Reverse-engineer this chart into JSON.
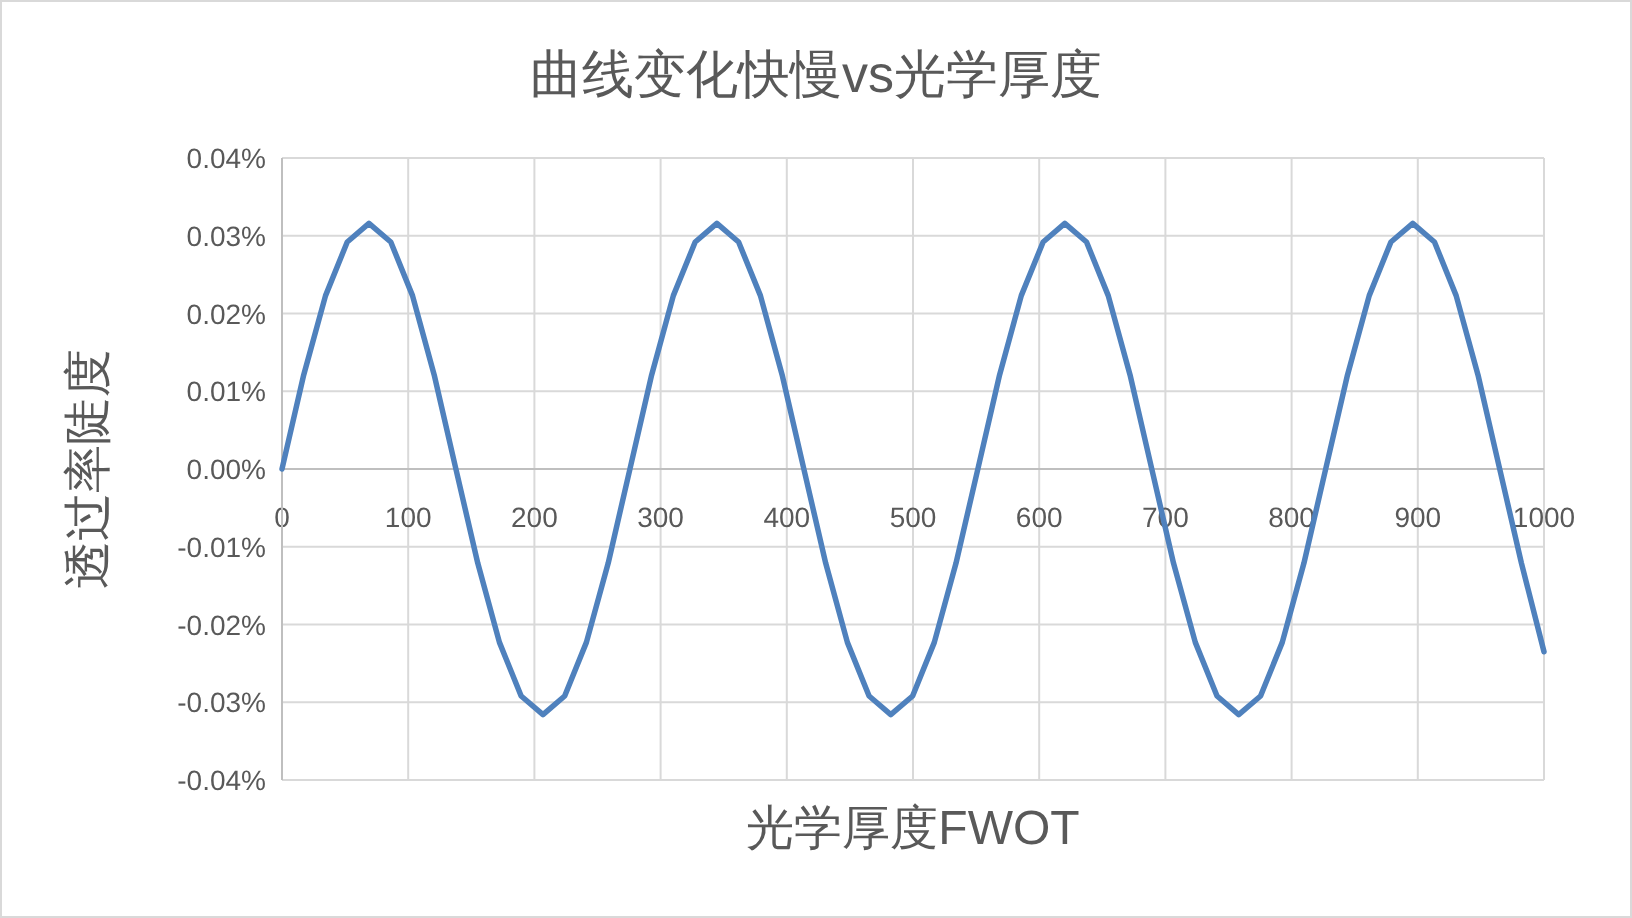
{
  "chart_data": {
    "type": "line",
    "title": "曲线变化快慢vs光学厚度",
    "xlabel": "光学厚度FWOT",
    "ylabel": "透过率陡度",
    "xlim": [
      0,
      1000
    ],
    "xticks": [
      0,
      100,
      200,
      300,
      400,
      500,
      600,
      700,
      800,
      900,
      1000
    ],
    "ylim": [
      -0.04,
      0.04
    ],
    "yticks": [
      {
        "value": -0.04,
        "label": "-0.04%"
      },
      {
        "value": -0.03,
        "label": "-0.03%"
      },
      {
        "value": -0.02,
        "label": "-0.02%"
      },
      {
        "value": -0.01,
        "label": "-0.01%"
      },
      {
        "value": 0,
        "label": "0.00%"
      },
      {
        "value": 0.01,
        "label": "0.01%"
      },
      {
        "value": 0.02,
        "label": "0.02%"
      },
      {
        "value": 0.03,
        "label": "0.03%"
      },
      {
        "value": 0.04,
        "label": "0.04%"
      }
    ],
    "grid": true,
    "series": [
      {
        "color": "#4f81bd",
        "x": [
          0,
          17.2,
          34.5,
          51.7,
          68.9,
          86.2,
          103.4,
          120.6,
          137.8,
          155.1,
          172.3,
          189.5,
          206.8,
          224.0,
          241.2,
          258.5,
          275.7,
          292.9,
          310.1,
          327.4,
          344.6,
          361.8,
          379.1,
          396.3,
          413.5,
          430.8,
          448.0,
          465.2,
          482.4,
          499.7,
          516.9,
          534.1,
          551.4,
          568.6,
          585.8,
          603.1,
          620.3,
          637.5,
          654.7,
          672.0,
          689.2,
          706.4,
          723.7,
          740.9,
          758.1,
          775.4,
          792.6,
          809.8,
          827.0,
          844.3,
          861.5,
          878.7,
          896.0,
          913.2,
          930.4,
          947.7,
          964.9,
          982.1,
          1000
        ],
        "values": [
          0,
          0.0121,
          0.0223,
          0.0292,
          0.0316,
          0.0292,
          0.0223,
          0.0121,
          0,
          -0.0121,
          -0.0223,
          -0.0292,
          -0.0316,
          -0.0292,
          -0.0223,
          -0.0121,
          0,
          0.0121,
          0.0223,
          0.0292,
          0.0316,
          0.0292,
          0.0223,
          0.0121,
          0,
          -0.0121,
          -0.0223,
          -0.0292,
          -0.0316,
          -0.0292,
          -0.0223,
          -0.0121,
          0,
          0.0121,
          0.0223,
          0.0292,
          0.0316,
          0.0292,
          0.0223,
          0.0121,
          0,
          -0.0121,
          -0.0223,
          -0.0292,
          -0.0316,
          -0.0292,
          -0.0223,
          -0.0121,
          0,
          0.0121,
          0.0223,
          0.0292,
          0.0316,
          0.0292,
          0.0223,
          0.0121,
          0,
          -0.0121,
          -0.0235
        ]
      }
    ]
  }
}
